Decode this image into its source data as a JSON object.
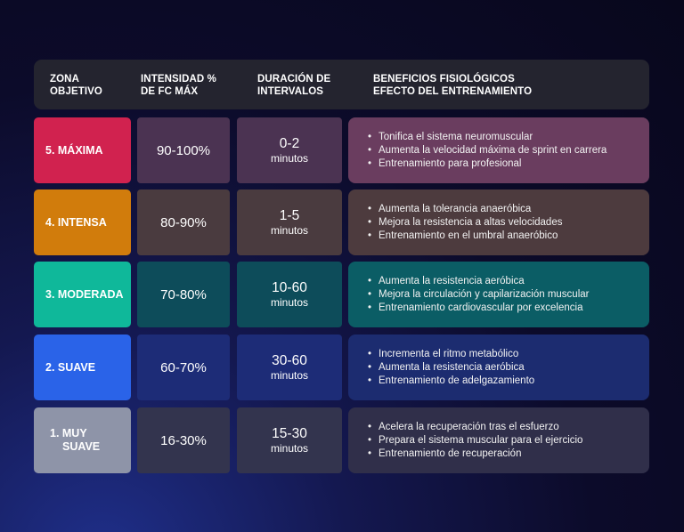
{
  "header": {
    "col1_line1": "ZONA",
    "col1_line2": "OBJETIVO",
    "col2_line1": "INTENSIDAD %",
    "col2_line2": "DE FC MÁX",
    "col3_line1": "DURACIÓN DE",
    "col3_line2": "INTERVALOS",
    "col4_line1": "BENEFICIOS FISIOLÓGICOS",
    "col4_line2": "EFECTO DEL ENTRENAMIENTO"
  },
  "rows": [
    {
      "zone": "5. MÁXIMA",
      "intensity": "90-100%",
      "duration": "0-2",
      "duration_unit": "minutos",
      "benefits": [
        "Tonifica el sistema neuromuscular",
        "Aumenta la velocidad máxima de sprint en carrera",
        "Entrenamiento para profesional"
      ],
      "colors": {
        "zone": "#d1224f",
        "cell": "#4b3352",
        "benefits": "#6a3d5f"
      }
    },
    {
      "zone": "4. INTENSA",
      "intensity": "80-90%",
      "duration": "1-5",
      "duration_unit": "minutos",
      "benefits": [
        "Aumenta la tolerancia anaeróbica",
        "Mejora la resistencia a altas velocidades",
        "Entrenamiento en el umbral anaeróbico"
      ],
      "colors": {
        "zone": "#d17c0c",
        "cell": "#4a3b3f",
        "benefits": "#4d3b3e"
      }
    },
    {
      "zone": "3. MODERADA",
      "intensity": "70-80%",
      "duration": "10-60",
      "duration_unit": "minutos",
      "benefits": [
        "Aumenta la resistencia aeróbica",
        "Mejora la circulación y capilarización muscular",
        "Entrenamiento cardiovascular por excelencia"
      ],
      "colors": {
        "zone": "#0fb89a",
        "cell": "#0d4c5a",
        "benefits": "#0b5d65"
      }
    },
    {
      "zone": "2. SUAVE",
      "intensity": "60-70%",
      "duration": "30-60",
      "duration_unit": "minutos",
      "benefits": [
        "Incrementa el ritmo metabólico",
        "Aumenta la resistencia aeróbica",
        "Entrenamiento de adelgazamiento"
      ],
      "colors": {
        "zone": "#2a63e8",
        "cell": "#1d2c77",
        "benefits": "#1c2c70"
      }
    },
    {
      "zone_line1": "1. MUY",
      "zone_line2": "SUAVE",
      "intensity": "16-30%",
      "duration": "15-30",
      "duration_unit": "minutos",
      "benefits": [
        "Acelera la recuperación tras el esfuerzo",
        "Prepara el sistema muscular para el ejercicio",
        "Entrenamiento de recuperación"
      ],
      "colors": {
        "zone": "#8e94a8",
        "cell": "#33344e",
        "benefits": "#302f4a"
      }
    }
  ]
}
